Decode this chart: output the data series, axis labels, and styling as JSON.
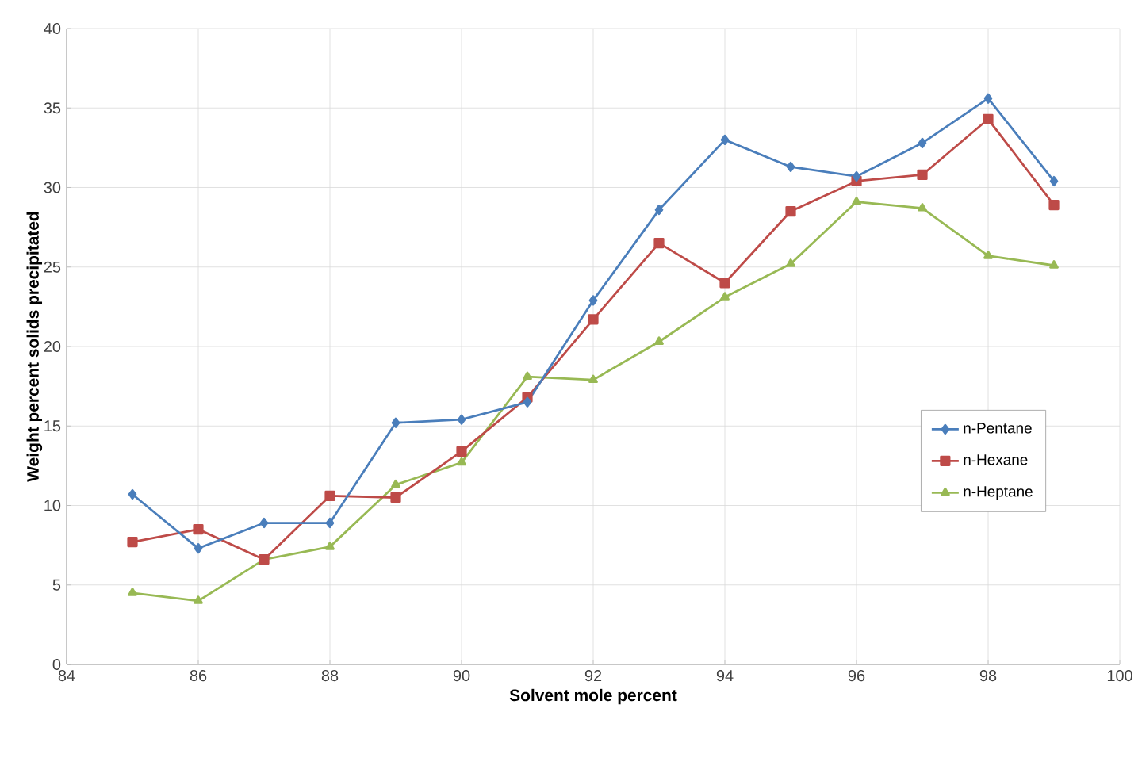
{
  "chart_data": {
    "type": "line",
    "xlabel": "Solvent mole percent",
    "ylabel": "Weight percent solids precipitated",
    "x": [
      85,
      86,
      87,
      88,
      89,
      90,
      91,
      92,
      93,
      94,
      95,
      96,
      97,
      98,
      99
    ],
    "series": [
      {
        "name": "n-Pentane",
        "color": "#4a7ebb",
        "marker": "diamond",
        "values": [
          10.7,
          7.3,
          8.9,
          8.9,
          15.2,
          15.4,
          16.5,
          22.9,
          28.6,
          33.0,
          31.3,
          30.7,
          32.8,
          35.6,
          30.4
        ]
      },
      {
        "name": "n-Hexane",
        "color": "#be4b48",
        "marker": "square",
        "values": [
          7.7,
          8.5,
          6.6,
          10.6,
          10.5,
          13.4,
          16.8,
          21.7,
          26.5,
          24.0,
          28.5,
          30.4,
          30.8,
          34.3,
          28.9
        ]
      },
      {
        "name": "n-Heptane",
        "color": "#98b954",
        "marker": "triangle",
        "values": [
          4.5,
          4.0,
          6.6,
          7.4,
          11.3,
          12.7,
          18.1,
          17.9,
          20.3,
          23.1,
          25.2,
          29.1,
          28.7,
          25.7,
          25.1
        ]
      }
    ],
    "xlim": [
      84,
      100
    ],
    "xticks": [
      84,
      86,
      88,
      90,
      92,
      94,
      96,
      98,
      100
    ],
    "ylim": [
      0,
      40
    ],
    "yticks": [
      0,
      5,
      10,
      15,
      20,
      25,
      30,
      35,
      40
    ],
    "grid": true,
    "legend": "right",
    "line_style": "solid"
  }
}
